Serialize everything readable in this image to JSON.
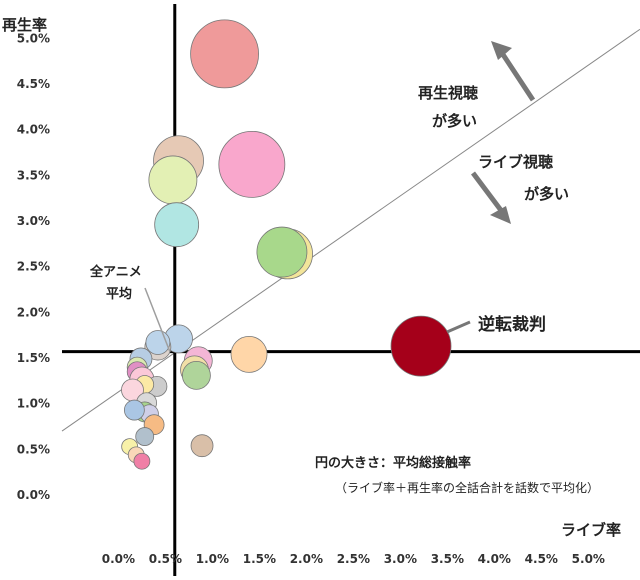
{
  "chart_data": {
    "type": "scatter",
    "title": "",
    "xlabel": "ライブ率",
    "ylabel": "再生率",
    "xlim": [
      -0.6,
      5.55
    ],
    "ylim": [
      -0.58,
      5.42
    ],
    "x_ticks": [
      "0.0%",
      "0.5%",
      "1.0%",
      "1.5%",
      "2.0%",
      "2.5%",
      "3.0%",
      "3.5%",
      "4.0%",
      "4.5%",
      "5.0%"
    ],
    "x_tick_values": [
      0.0,
      0.5,
      1.0,
      1.5,
      2.0,
      2.5,
      3.0,
      3.5,
      4.0,
      4.5,
      5.0
    ],
    "y_ticks": [
      "0.0%",
      "0.5%",
      "1.0%",
      "1.5%",
      "2.0%",
      "2.5%",
      "3.0%",
      "3.5%",
      "4.0%",
      "4.5%",
      "5.0%"
    ],
    "y_tick_values": [
      0.0,
      0.5,
      1.0,
      1.5,
      2.0,
      2.5,
      3.0,
      3.5,
      4.0,
      4.5,
      5.0
    ],
    "grid": false,
    "average_lines": {
      "x": 0.6,
      "y": 1.57
    },
    "diagonal_line": {
      "from": [
        -0.6,
        0.7
      ],
      "to": [
        5.55,
        5.1
      ]
    },
    "size_meaning": "平均総接触率",
    "points": [
      {
        "x": 1.13,
        "y": 4.83,
        "r": 34,
        "color": "#ef9a9a"
      },
      {
        "x": 0.64,
        "y": 3.66,
        "r": 25,
        "color": "#e6c9b5"
      },
      {
        "x": 1.42,
        "y": 3.62,
        "r": 33,
        "color": "#f9a7cc"
      },
      {
        "x": 0.58,
        "y": 3.45,
        "r": 24,
        "color": "#e3f0b4"
      },
      {
        "x": 0.62,
        "y": 2.96,
        "r": 22,
        "color": "#b1e6e3"
      },
      {
        "x": 1.8,
        "y": 2.64,
        "r": 25,
        "color": "#f3e59a"
      },
      {
        "x": 1.74,
        "y": 2.66,
        "r": 25,
        "color": "#a8d88b"
      },
      {
        "x": 3.22,
        "y": 1.63,
        "r": 30,
        "color": "#a5001a"
      },
      {
        "x": 0.64,
        "y": 1.71,
        "r": 14,
        "color": "#bcd4ea"
      },
      {
        "x": 0.42,
        "y": 1.62,
        "r": 13,
        "color": "#dcd3cd"
      },
      {
        "x": 0.42,
        "y": 1.67,
        "r": 12,
        "color": "#bcd4ea"
      },
      {
        "x": 0.85,
        "y": 1.47,
        "r": 14,
        "color": "#f4b6d6"
      },
      {
        "x": 1.39,
        "y": 1.54,
        "r": 18,
        "color": "#ffd6a8"
      },
      {
        "x": 0.24,
        "y": 1.49,
        "r": 11,
        "color": "#b7cde3"
      },
      {
        "x": 0.2,
        "y": 1.4,
        "r": 10,
        "color": "#dae9b0"
      },
      {
        "x": 0.2,
        "y": 1.35,
        "r": 10,
        "color": "#e08fc4"
      },
      {
        "x": 0.81,
        "y": 1.37,
        "r": 14,
        "color": "#f1dfa7"
      },
      {
        "x": 0.83,
        "y": 1.31,
        "r": 14,
        "color": "#afd49a"
      },
      {
        "x": 0.25,
        "y": 1.27,
        "r": 12,
        "color": "#fbc8d8"
      },
      {
        "x": 0.41,
        "y": 1.19,
        "r": 10,
        "color": "#cccccc"
      },
      {
        "x": 0.28,
        "y": 1.21,
        "r": 9,
        "color": "#fce9a5"
      },
      {
        "x": 0.15,
        "y": 1.15,
        "r": 11,
        "color": "#fbd6de"
      },
      {
        "x": 0.3,
        "y": 1.01,
        "r": 10,
        "color": "#d9d9d9"
      },
      {
        "x": 0.28,
        "y": 0.91,
        "r": 10,
        "color": "#a8d48d"
      },
      {
        "x": 0.33,
        "y": 0.89,
        "r": 9,
        "color": "#cfcfe8"
      },
      {
        "x": 0.17,
        "y": 0.93,
        "r": 10,
        "color": "#aac6e4"
      },
      {
        "x": 0.38,
        "y": 0.77,
        "r": 10,
        "color": "#f6bb84"
      },
      {
        "x": 0.28,
        "y": 0.64,
        "r": 9,
        "color": "#b1c0cc"
      },
      {
        "x": 0.12,
        "y": 0.53,
        "r": 8,
        "color": "#f8f1a9"
      },
      {
        "x": 0.19,
        "y": 0.44,
        "r": 8,
        "color": "#fad8b8"
      },
      {
        "x": 0.89,
        "y": 0.54,
        "r": 11,
        "color": "#d9bfa8"
      },
      {
        "x": 0.25,
        "y": 0.37,
        "r": 8,
        "color": "#f07fa6"
      }
    ]
  },
  "annotations": {
    "upper_left_line1": "再生視聴",
    "upper_left_line2": "が多い",
    "lower_right_line1": "ライブ視聴",
    "lower_right_line2": "が多い",
    "average_line1": "全アニメ",
    "average_line2": "平均",
    "verdict": "逆転裁判",
    "size_title": "円の大きさ：平均総接触率",
    "size_note": "（ライブ率＋再生率の全話合計を話数で平均化）"
  }
}
